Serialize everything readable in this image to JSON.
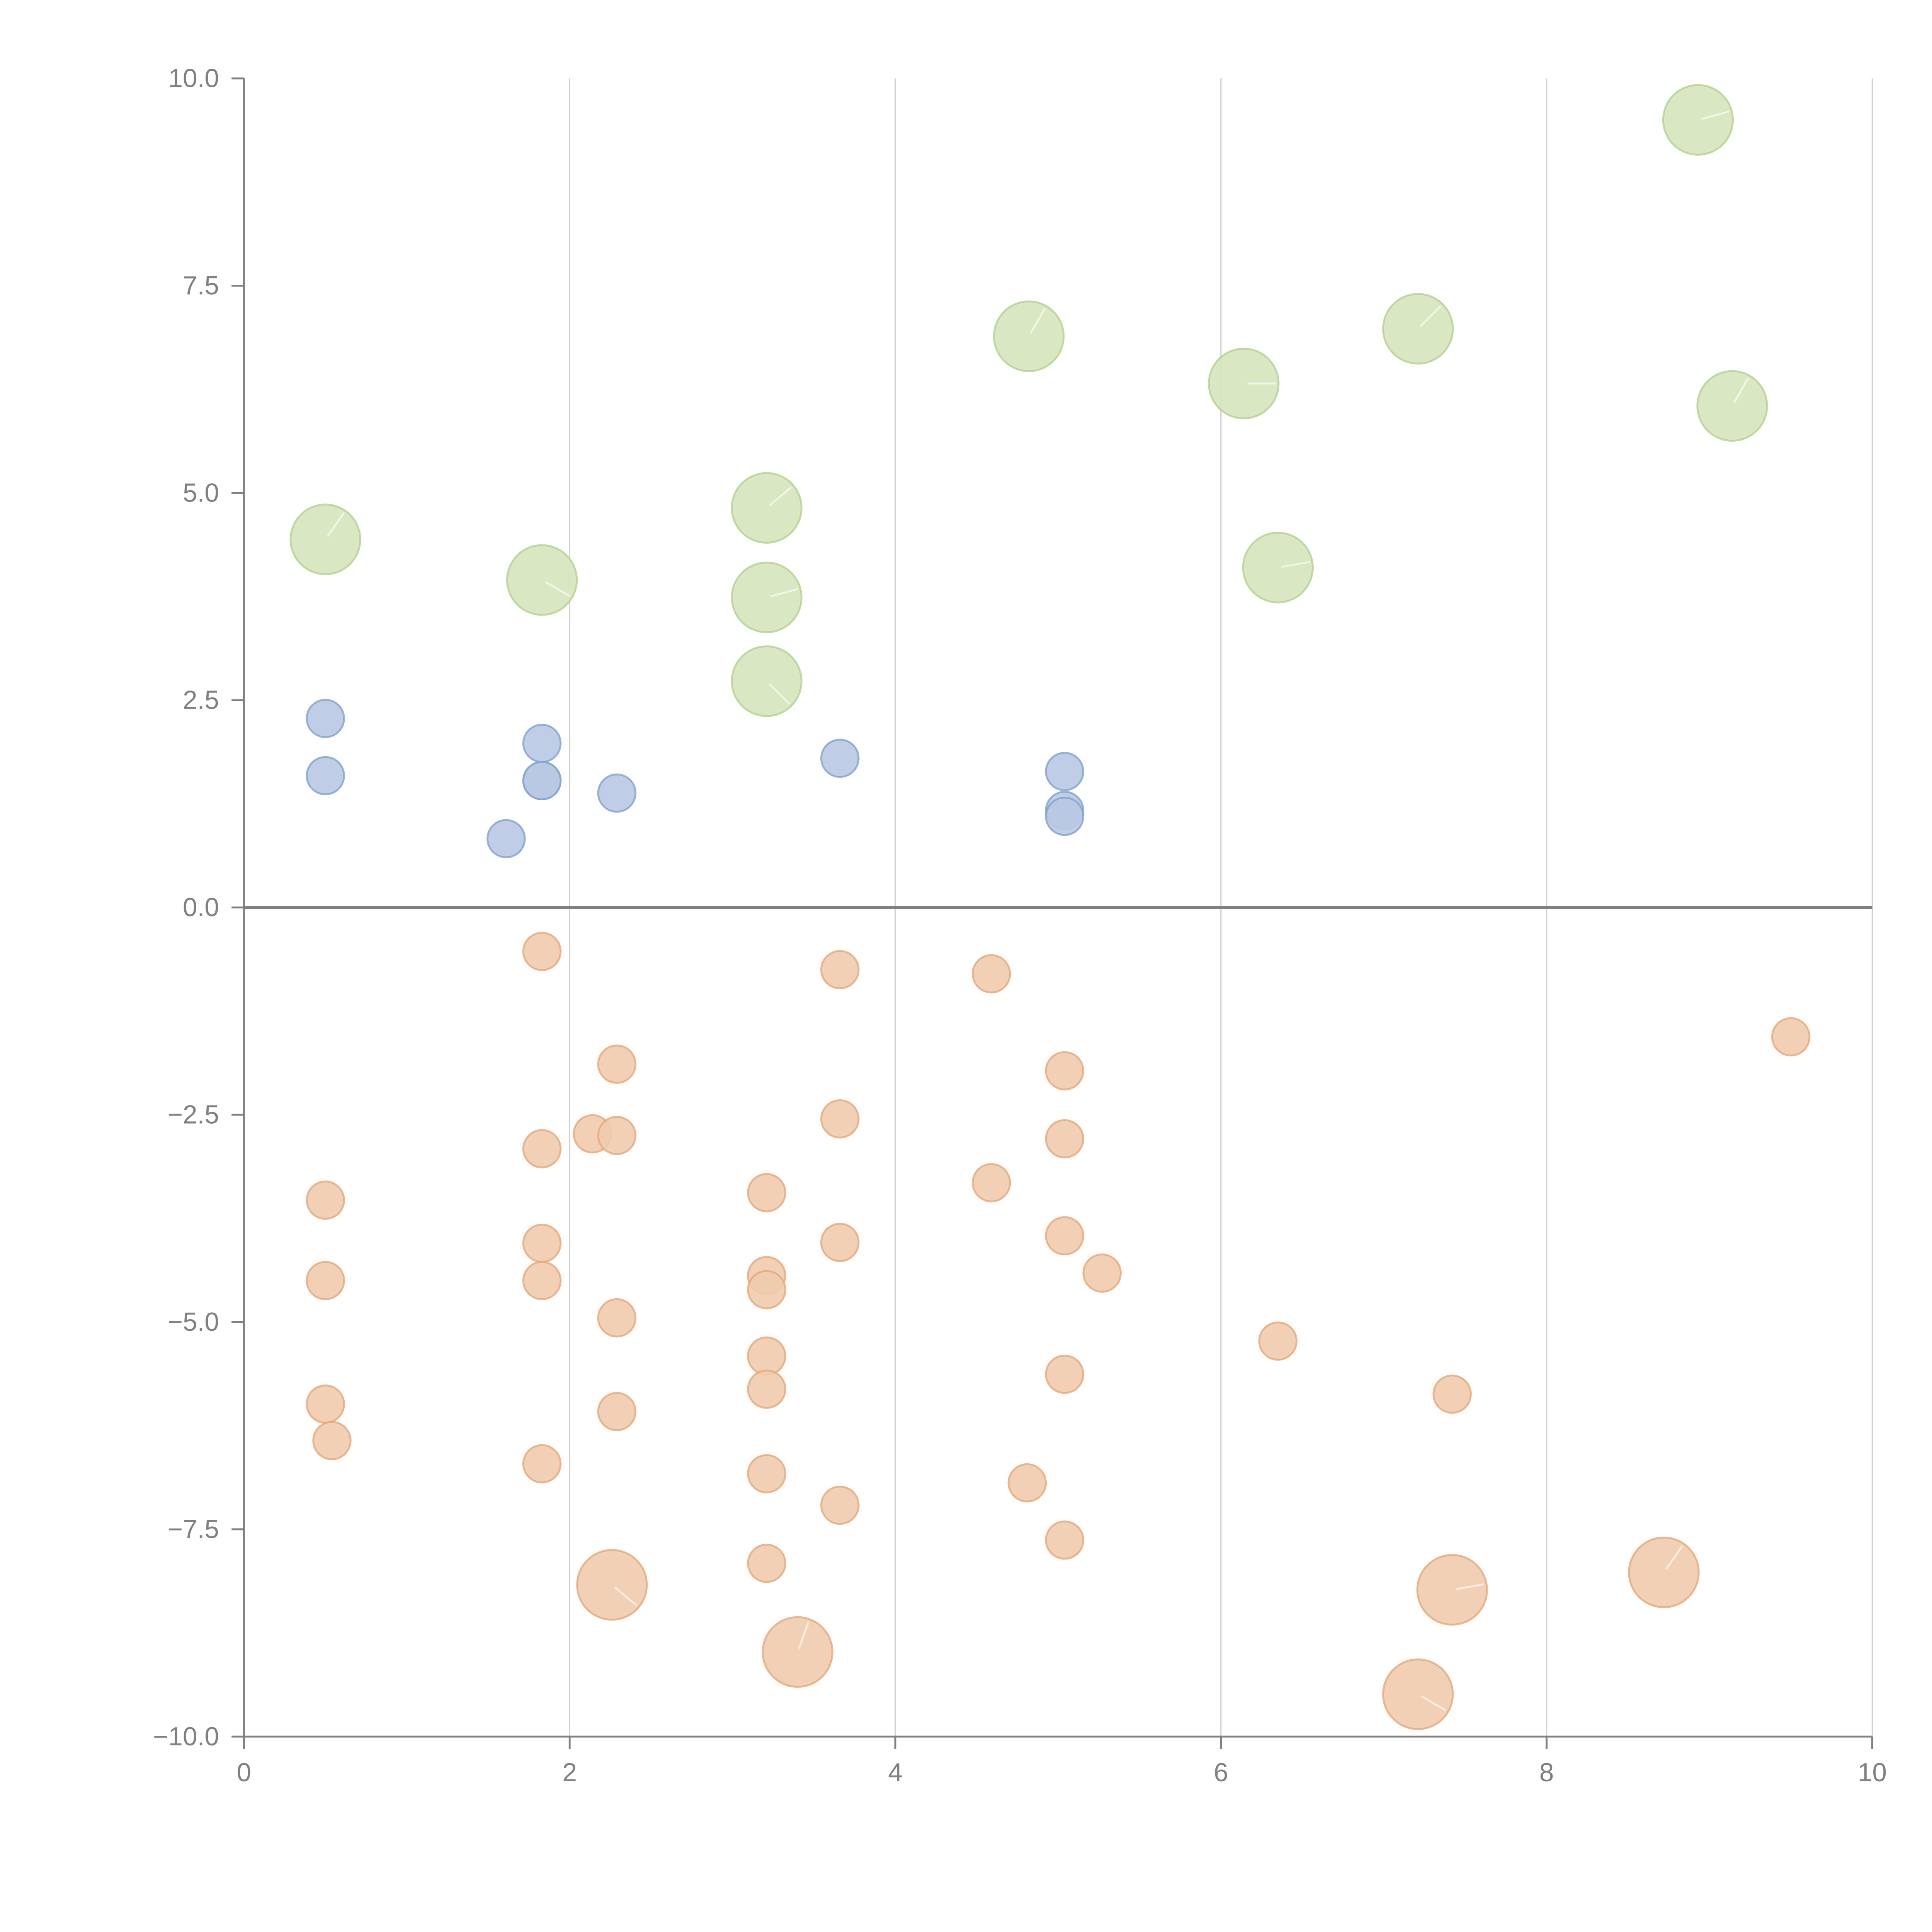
{
  "chart_data": {
    "type": "scatter",
    "title": "",
    "xlabel": "",
    "ylabel": "",
    "xlim": [
      0,
      10
    ],
    "ylim": [
      -10,
      10
    ],
    "x_ticks": [
      0,
      2,
      4,
      6,
      8,
      10
    ],
    "x_tick_labels": [
      "0",
      "2",
      "4",
      "6",
      "8",
      "10"
    ],
    "y_ticks": [
      10,
      7.5,
      5,
      2.5,
      0,
      -2.5,
      -5,
      -7.5,
      -10
    ],
    "y_tick_labels": [
      "10.0",
      "7.5",
      "5.0",
      "2.5",
      "0.0",
      "−2.5",
      "−5.0",
      "−7.5",
      "−10.0"
    ],
    "grid": "vertical",
    "zero_line": true,
    "legend": "none",
    "series": [
      {
        "name": "green",
        "fill": "#d6e4bd",
        "stroke": "#b5d18f",
        "size": "large",
        "points": [
          [
            0.5,
            4.44
          ],
          [
            1.83,
            3.95
          ],
          [
            3.21,
            4.82
          ],
          [
            3.21,
            3.74
          ],
          [
            3.21,
            2.73
          ],
          [
            4.82,
            6.89
          ],
          [
            6.14,
            6.32
          ],
          [
            6.35,
            4.1
          ],
          [
            7.21,
            6.98
          ],
          [
            8.93,
            9.5
          ],
          [
            9.14,
            6.05
          ]
        ]
      },
      {
        "name": "blue",
        "fill": "#b8c9e3",
        "stroke": "#7fa2d1",
        "size": "small",
        "points": [
          [
            0.5,
            2.28
          ],
          [
            0.5,
            1.59
          ],
          [
            1.83,
            1.98
          ],
          [
            1.83,
            1.53
          ],
          [
            1.83,
            1.53
          ],
          [
            1.61,
            0.83
          ],
          [
            2.29,
            1.38
          ],
          [
            3.66,
            1.8
          ],
          [
            5.04,
            1.64
          ],
          [
            5.04,
            1.17
          ],
          [
            5.04,
            1.1
          ]
        ]
      },
      {
        "name": "orange",
        "fill": "#f0cbad",
        "stroke": "#e6a878",
        "size": "small",
        "points": [
          [
            1.83,
            -0.53
          ],
          [
            3.66,
            -0.75
          ],
          [
            4.59,
            -0.8
          ],
          [
            9.5,
            -1.56
          ],
          [
            2.29,
            -1.89
          ],
          [
            5.04,
            -1.97
          ],
          [
            3.66,
            -2.55
          ],
          [
            2.14,
            -2.73
          ],
          [
            2.29,
            -2.75
          ],
          [
            5.04,
            -2.79
          ],
          [
            1.83,
            -2.91
          ],
          [
            4.59,
            -3.32
          ],
          [
            3.21,
            -3.44
          ],
          [
            0.5,
            -3.53
          ],
          [
            5.04,
            -3.96
          ],
          [
            3.66,
            -4.04
          ],
          [
            1.83,
            -4.05
          ],
          [
            5.27,
            -4.41
          ],
          [
            3.21,
            -4.44
          ],
          [
            0.5,
            -4.5
          ],
          [
            1.83,
            -4.5
          ],
          [
            3.21,
            -4.61
          ],
          [
            2.29,
            -4.95
          ],
          [
            6.35,
            -5.23
          ],
          [
            3.21,
            -5.41
          ],
          [
            5.04,
            -5.63
          ],
          [
            3.21,
            -5.81
          ],
          [
            7.42,
            -5.87
          ],
          [
            0.5,
            -5.99
          ],
          [
            2.29,
            -6.08
          ],
          [
            0.54,
            -6.43
          ],
          [
            1.83,
            -6.71
          ],
          [
            3.21,
            -6.83
          ],
          [
            4.81,
            -6.94
          ],
          [
            3.66,
            -7.21
          ],
          [
            5.04,
            -7.63
          ],
          [
            3.21,
            -7.91
          ]
        ]
      },
      {
        "name": "orange-large",
        "fill": "#f0cbad",
        "stroke": "#e6a878",
        "size": "large",
        "points": [
          [
            2.26,
            -8.17
          ],
          [
            3.4,
            -8.98
          ],
          [
            7.42,
            -8.23
          ],
          [
            8.72,
            -8.02
          ],
          [
            7.21,
            -9.49
          ]
        ]
      }
    ]
  }
}
